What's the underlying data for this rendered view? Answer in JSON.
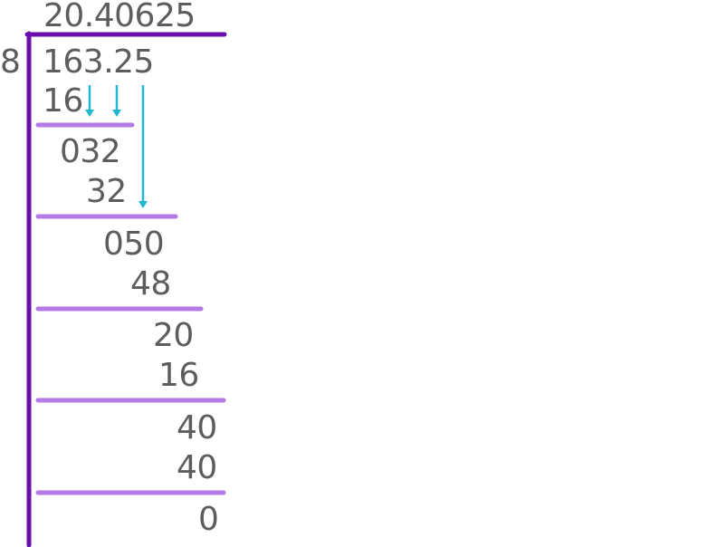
{
  "long_division": {
    "quotient": "20.40625",
    "divisor": "8",
    "dividend": "163.25",
    "steps": [
      {
        "subtract": "16",
        "remainder": "032"
      },
      {
        "subtract": "32",
        "remainder": "050"
      },
      {
        "subtract": "48",
        "remainder": "20"
      },
      {
        "subtract": "16",
        "remainder": "40"
      },
      {
        "subtract": "40",
        "remainder": "0"
      }
    ]
  },
  "colors": {
    "text": "#5d5d5d",
    "bracket": "#6a0dad",
    "underline": "#b57ae6",
    "bring_down_arrow": "#1fb8d0"
  }
}
